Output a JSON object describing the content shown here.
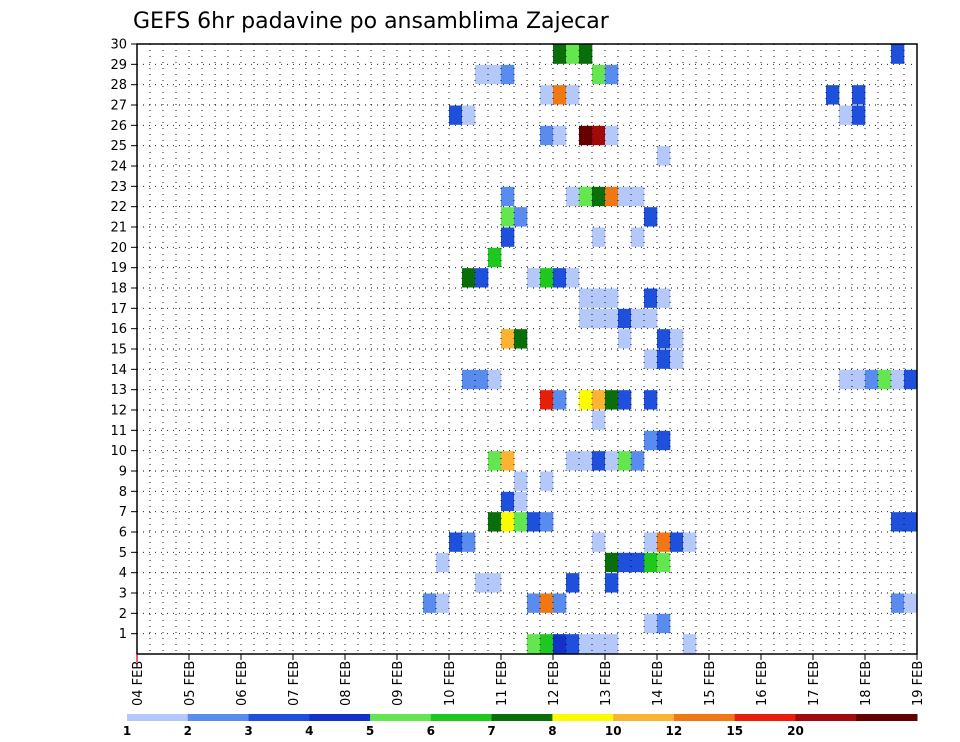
{
  "chart_data": {
    "type": "heatmap",
    "title": "GEFS 6hr padavine po ansamblima Zajecar",
    "xlabel": "",
    "ylabel": "",
    "x_tick_labels": [
      "04 FEB",
      "05 FEB",
      "06 FEB",
      "07 FEB",
      "08 FEB",
      "09 FEB",
      "10 FEB",
      "11 FEB",
      "12 FEB",
      "13 FEB",
      "14 FEB",
      "15 FEB",
      "16 FEB",
      "17 FEB",
      "18 FEB",
      "19 FEB"
    ],
    "y_tick_labels": [
      "1",
      "2",
      "3",
      "4",
      "5",
      "6",
      "7",
      "8",
      "9",
      "10",
      "11",
      "12",
      "13",
      "14",
      "15",
      "16",
      "17",
      "18",
      "19",
      "20",
      "21",
      "22",
      "23",
      "24",
      "25",
      "26",
      "27",
      "28",
      "29",
      "30"
    ],
    "x_unit": "6-hour step since 04 FEB 00Z",
    "xlim": [
      0,
      60
    ],
    "ylim": [
      0,
      30
    ],
    "grid": true,
    "colorbar": {
      "labels": [
        "1",
        "2",
        "3",
        "4",
        "5",
        "6",
        "7",
        "8",
        "10",
        "12",
        "15",
        "20"
      ],
      "colors": [
        "#b4c8fa",
        "#5a8cf0",
        "#1e50dc",
        "#1432c8",
        "#64e650",
        "#1ec81e",
        "#0a6e0a",
        "#fafa00",
        "#fab432",
        "#f07814",
        "#e61e0a",
        "#a00a0a",
        "#640000"
      ]
    },
    "cells": [
      [
        1,
        31,
        5
      ],
      [
        1,
        32,
        6
      ],
      [
        1,
        33,
        4
      ],
      [
        1,
        34,
        3
      ],
      [
        1,
        35,
        1
      ],
      [
        1,
        36,
        1
      ],
      [
        1,
        37,
        1
      ],
      [
        1,
        43,
        1
      ],
      [
        2,
        40,
        1
      ],
      [
        2,
        41,
        2
      ],
      [
        3,
        31,
        2
      ],
      [
        3,
        32,
        10
      ],
      [
        3,
        33,
        2
      ],
      [
        3,
        59,
        2
      ],
      [
        3,
        60,
        1
      ],
      [
        3,
        23,
        2
      ],
      [
        3,
        24,
        1
      ],
      [
        4,
        27,
        1
      ],
      [
        4,
        28,
        1
      ],
      [
        4,
        34,
        3
      ],
      [
        4,
        37,
        3
      ],
      [
        5,
        24,
        1
      ],
      [
        5,
        40,
        6
      ],
      [
        5,
        41,
        5
      ],
      [
        5,
        37,
        7
      ],
      [
        5,
        38,
        3
      ],
      [
        5,
        39,
        3
      ],
      [
        6,
        25,
        3
      ],
      [
        6,
        26,
        2
      ],
      [
        6,
        36,
        1
      ],
      [
        6,
        40,
        1
      ],
      [
        6,
        41,
        10
      ],
      [
        6,
        42,
        3
      ],
      [
        6,
        43,
        1
      ],
      [
        7,
        28,
        7
      ],
      [
        7,
        29,
        8
      ],
      [
        7,
        30,
        5
      ],
      [
        7,
        31,
        3
      ],
      [
        7,
        32,
        2
      ],
      [
        7,
        59,
        3
      ],
      [
        7,
        60,
        3
      ],
      [
        8,
        29,
        3
      ],
      [
        8,
        30,
        1
      ],
      [
        9,
        30,
        1
      ],
      [
        9,
        32,
        1
      ],
      [
        10,
        28,
        5
      ],
      [
        10,
        29,
        9
      ],
      [
        10,
        34,
        1
      ],
      [
        10,
        35,
        1
      ],
      [
        10,
        36,
        3
      ],
      [
        10,
        37,
        1
      ],
      [
        10,
        38,
        5
      ],
      [
        10,
        39,
        2
      ],
      [
        11,
        40,
        2
      ],
      [
        11,
        41,
        3
      ],
      [
        12,
        36,
        1
      ],
      [
        13,
        32,
        11
      ],
      [
        13,
        33,
        2
      ],
      [
        13,
        35,
        8
      ],
      [
        13,
        36,
        9
      ],
      [
        13,
        37,
        7
      ],
      [
        13,
        38,
        3
      ],
      [
        13,
        40,
        3
      ],
      [
        14,
        26,
        2
      ],
      [
        14,
        27,
        2
      ],
      [
        14,
        28,
        1
      ],
      [
        14,
        55,
        1
      ],
      [
        14,
        56,
        1
      ],
      [
        14,
        57,
        2
      ],
      [
        14,
        58,
        5
      ],
      [
        14,
        59,
        1
      ],
      [
        14,
        60,
        3
      ],
      [
        15,
        40,
        1
      ],
      [
        15,
        41,
        3
      ],
      [
        15,
        42,
        1
      ],
      [
        16,
        29,
        9
      ],
      [
        16,
        30,
        7
      ],
      [
        16,
        38,
        1
      ],
      [
        16,
        41,
        3
      ],
      [
        16,
        42,
        1
      ],
      [
        17,
        35,
        1
      ],
      [
        17,
        36,
        1
      ],
      [
        17,
        37,
        1
      ],
      [
        17,
        38,
        3
      ],
      [
        17,
        39,
        1
      ],
      [
        17,
        40,
        1
      ],
      [
        18,
        35,
        1
      ],
      [
        18,
        36,
        1
      ],
      [
        18,
        37,
        1
      ],
      [
        18,
        40,
        3
      ],
      [
        18,
        41,
        1
      ],
      [
        19,
        26,
        7
      ],
      [
        19,
        27,
        3
      ],
      [
        19,
        31,
        1
      ],
      [
        19,
        32,
        6
      ],
      [
        19,
        33,
        3
      ],
      [
        19,
        34,
        1
      ],
      [
        20,
        28,
        6
      ],
      [
        21,
        29,
        3
      ],
      [
        21,
        36,
        1
      ],
      [
        21,
        39,
        1
      ],
      [
        22,
        29,
        5
      ],
      [
        22,
        30,
        2
      ],
      [
        22,
        40,
        3
      ],
      [
        23,
        29,
        2
      ],
      [
        23,
        34,
        1
      ],
      [
        23,
        35,
        5
      ],
      [
        23,
        36,
        7
      ],
      [
        23,
        37,
        10
      ],
      [
        23,
        38,
        1
      ],
      [
        23,
        39,
        1
      ],
      [
        25,
        41,
        1
      ],
      [
        26,
        32,
        2
      ],
      [
        26,
        33,
        1
      ],
      [
        26,
        35,
        13
      ],
      [
        26,
        36,
        12
      ],
      [
        26,
        37,
        1
      ],
      [
        27,
        25,
        3
      ],
      [
        27,
        26,
        1
      ],
      [
        27,
        55,
        1
      ],
      [
        27,
        56,
        3
      ],
      [
        28,
        32,
        1
      ],
      [
        28,
        33,
        10
      ],
      [
        28,
        34,
        1
      ],
      [
        28,
        54,
        3
      ],
      [
        28,
        56,
        3
      ],
      [
        29,
        27,
        1
      ],
      [
        29,
        28,
        1
      ],
      [
        29,
        29,
        2
      ],
      [
        29,
        36,
        5
      ],
      [
        29,
        37,
        2
      ],
      [
        30,
        33,
        7
      ],
      [
        30,
        34,
        5
      ],
      [
        30,
        35,
        7
      ],
      [
        30,
        59,
        3
      ]
    ]
  }
}
